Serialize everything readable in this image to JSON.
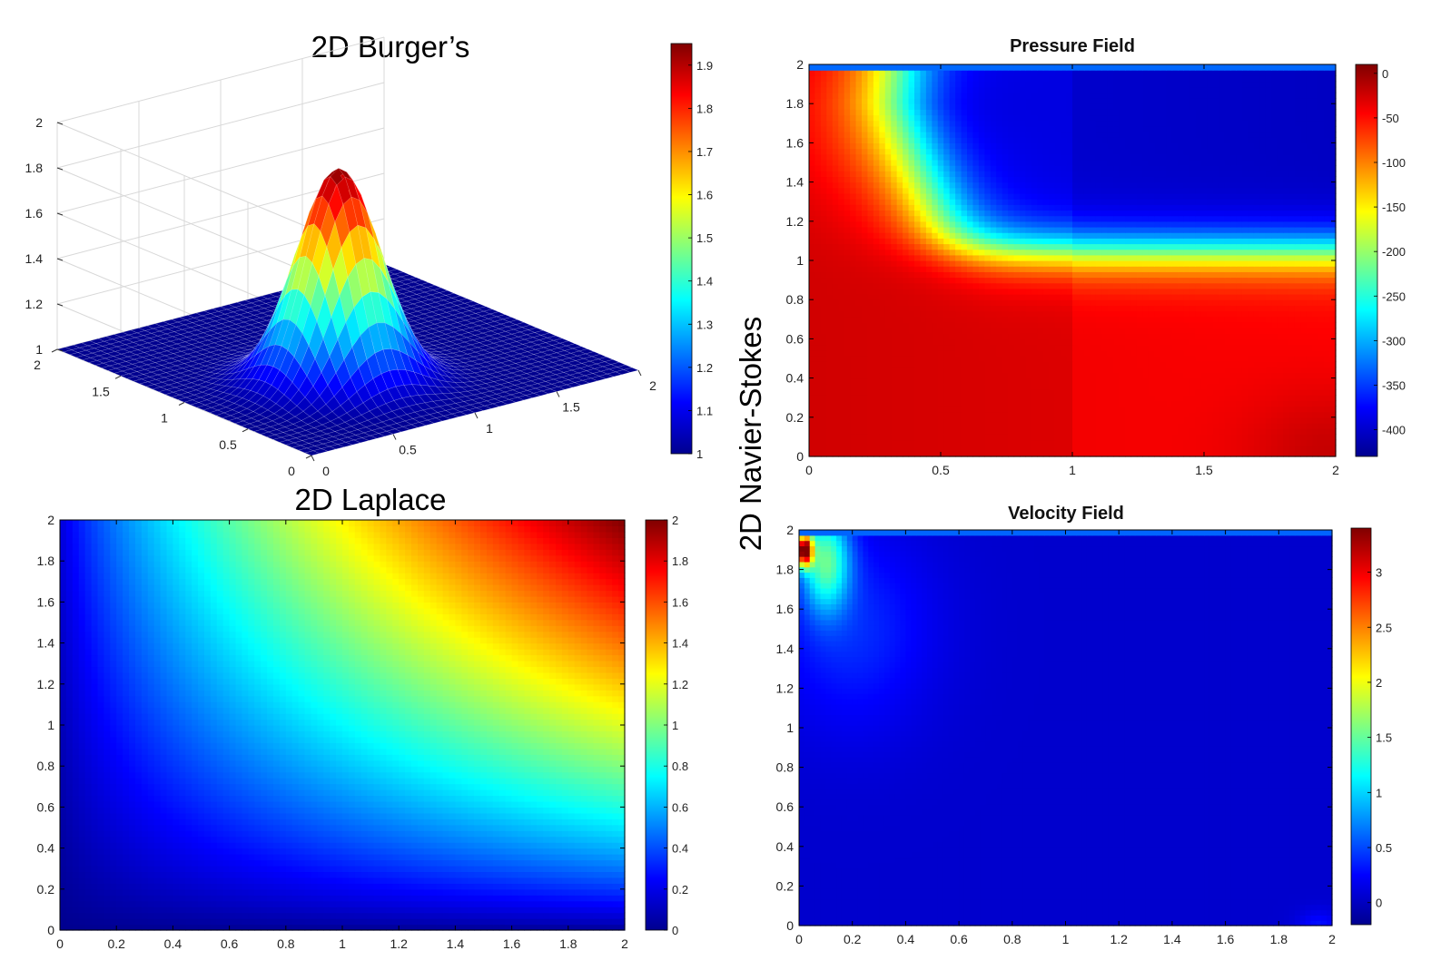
{
  "colormap": {
    "name": "jet",
    "stops": [
      "#00008f",
      "#0000ff",
      "#0080ff",
      "#00ffff",
      "#80ff80",
      "#ffff00",
      "#ff8000",
      "#ff0000",
      "#800000"
    ]
  },
  "side_title": "2D Navier-Stokes",
  "chart_data": [
    {
      "id": "burgers",
      "type": "surface",
      "title": "2D Burger’s",
      "xlabel": "",
      "ylabel": "",
      "zlabel": "",
      "xlim": [
        0,
        2
      ],
      "ylim": [
        0,
        2
      ],
      "zlim": [
        1,
        2
      ],
      "x_ticks": [
        "0",
        "0.5",
        "1",
        "1.5",
        "2"
      ],
      "y_ticks": [
        "0",
        "0.5",
        "1",
        "1.5",
        "2"
      ],
      "z_ticks": [
        "1",
        "1.2",
        "1.4",
        "1.6",
        "1.8",
        "2"
      ],
      "peak": {
        "x": 0.75,
        "y": 0.75,
        "z": 1.95
      },
      "baseline": 1,
      "colorbar": {
        "min": 1,
        "max": 1.95,
        "ticks": [
          "1",
          "1.1",
          "1.2",
          "1.3",
          "1.4",
          "1.5",
          "1.6",
          "1.7",
          "1.8",
          "1.9"
        ]
      }
    },
    {
      "id": "laplace",
      "type": "heatmap",
      "title": "2D Laplace",
      "xlabel": "",
      "ylabel": "",
      "xlim": [
        0,
        2
      ],
      "ylim": [
        0,
        2
      ],
      "x_ticks": [
        "0",
        "0.2",
        "0.4",
        "0.6",
        "0.8",
        "1",
        "1.2",
        "1.4",
        "1.6",
        "1.8",
        "2"
      ],
      "y_ticks": [
        "0",
        "0.2",
        "0.4",
        "0.6",
        "0.8",
        "1",
        "1.2",
        "1.4",
        "1.6",
        "1.8",
        "2"
      ],
      "colorbar": {
        "min": 0,
        "max": 2,
        "ticks": [
          "0",
          "0.2",
          "0.4",
          "0.6",
          "0.8",
          "1",
          "1.2",
          "1.4",
          "1.6",
          "1.8",
          "2"
        ]
      }
    },
    {
      "id": "pressure",
      "type": "heatmap",
      "title": "Pressure Field",
      "xlabel": "",
      "ylabel": "",
      "xlim": [
        0,
        2
      ],
      "ylim": [
        0,
        2
      ],
      "x_ticks": [
        "0",
        "0.5",
        "1",
        "1.5",
        "2"
      ],
      "y_ticks": [
        "0",
        "0.2",
        "0.4",
        "0.6",
        "0.8",
        "1",
        "1.2",
        "1.4",
        "1.6",
        "1.8",
        "2"
      ],
      "colorbar": {
        "min": -430,
        "max": 10,
        "ticks": [
          "0",
          "-50",
          "-100",
          "-150",
          "-200",
          "-250",
          "-300",
          "-350",
          "-400"
        ]
      }
    },
    {
      "id": "velocity",
      "type": "heatmap",
      "title": "Velocity Field",
      "xlabel": "",
      "ylabel": "",
      "xlim": [
        0,
        2
      ],
      "ylim": [
        0,
        2
      ],
      "x_ticks": [
        "0",
        "0.2",
        "0.4",
        "0.6",
        "0.8",
        "1",
        "1.2",
        "1.4",
        "1.6",
        "1.8",
        "2"
      ],
      "y_ticks": [
        "0",
        "0.2",
        "0.4",
        "0.6",
        "0.8",
        "1",
        "1.2",
        "1.4",
        "1.6",
        "1.8",
        "2"
      ],
      "colorbar": {
        "min": -0.2,
        "max": 3.4,
        "ticks": [
          "0",
          "0.5",
          "1",
          "1.5",
          "2",
          "2.5",
          "3"
        ]
      }
    }
  ]
}
